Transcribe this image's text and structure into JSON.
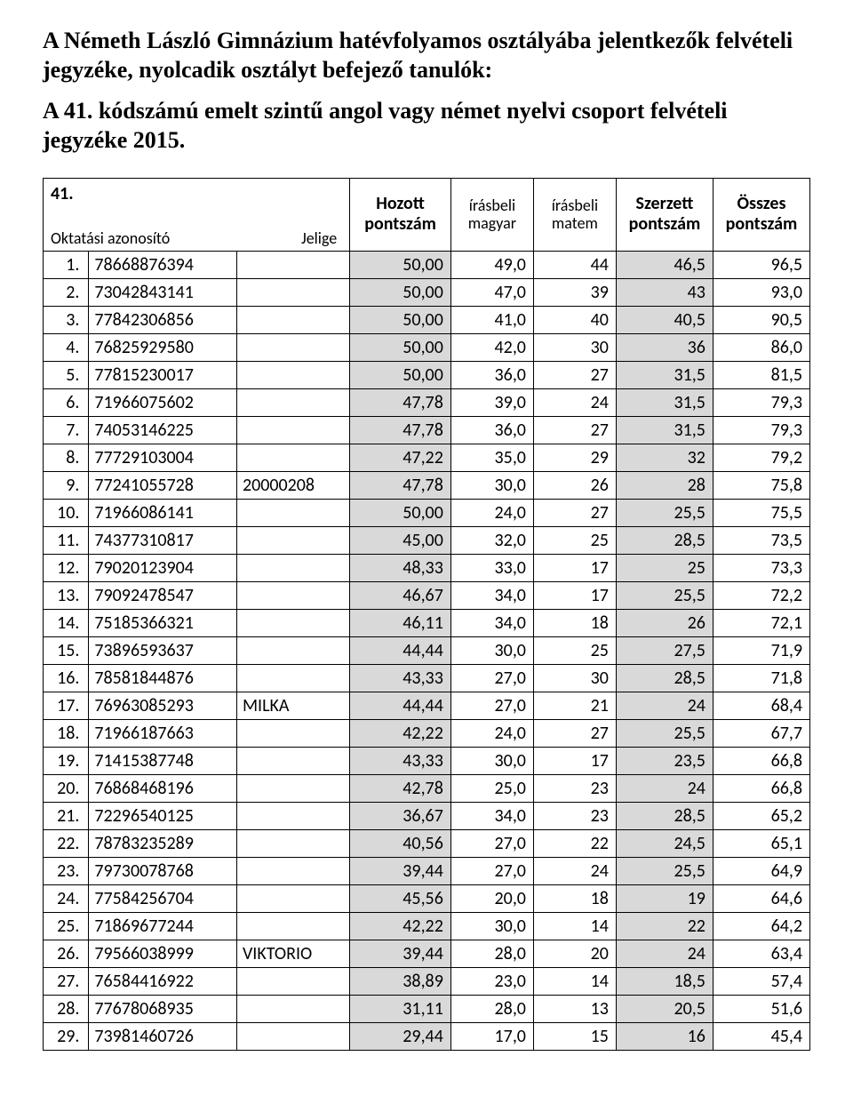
{
  "title_line1": "A Németh László Gimnázium hatévfolyamos osztályába jelentkezők felvételi jegyzéke, ",
  "title_line2": "nyolcadik osztályt befejező tanulók:",
  "subtitle": "A 41. kódszámú emelt szintű angol vagy német nyelvi csoport felvételi jegyzéke 2015.",
  "header": {
    "corner_number": "41.",
    "corner_azon": "Oktatási azonosító",
    "corner_jelige": "Jelige",
    "hozott": "Hozott pontszám",
    "magyar": "írásbeli magyar",
    "matem": "írásbeli matem",
    "szerzett": "Szerzett pontszám",
    "osszes": "Összes pontszám"
  },
  "colors": {
    "shade": "#d9d9d9",
    "border": "#000000",
    "background": "#ffffff",
    "text": "#000000"
  },
  "rows": [
    {
      "n": "1.",
      "id": "78668876394",
      "jel": "",
      "hoz": "50,00",
      "mag": "49,0",
      "mat": "44",
      "szer": "46,5",
      "ossz": "96,5"
    },
    {
      "n": "2.",
      "id": "73042843141",
      "jel": "",
      "hoz": "50,00",
      "mag": "47,0",
      "mat": "39",
      "szer": "43",
      "ossz": "93,0"
    },
    {
      "n": "3.",
      "id": "77842306856",
      "jel": "",
      "hoz": "50,00",
      "mag": "41,0",
      "mat": "40",
      "szer": "40,5",
      "ossz": "90,5"
    },
    {
      "n": "4.",
      "id": "76825929580",
      "jel": "",
      "hoz": "50,00",
      "mag": "42,0",
      "mat": "30",
      "szer": "36",
      "ossz": "86,0"
    },
    {
      "n": "5.",
      "id": "77815230017",
      "jel": "",
      "hoz": "50,00",
      "mag": "36,0",
      "mat": "27",
      "szer": "31,5",
      "ossz": "81,5"
    },
    {
      "n": "6.",
      "id": "71966075602",
      "jel": "",
      "hoz": "47,78",
      "mag": "39,0",
      "mat": "24",
      "szer": "31,5",
      "ossz": "79,3"
    },
    {
      "n": "7.",
      "id": "74053146225",
      "jel": "",
      "hoz": "47,78",
      "mag": "36,0",
      "mat": "27",
      "szer": "31,5",
      "ossz": "79,3"
    },
    {
      "n": "8.",
      "id": "77729103004",
      "jel": "",
      "hoz": "47,22",
      "mag": "35,0",
      "mat": "29",
      "szer": "32",
      "ossz": "79,2"
    },
    {
      "n": "9.",
      "id": "77241055728",
      "jel": "20000208",
      "hoz": "47,78",
      "mag": "30,0",
      "mat": "26",
      "szer": "28",
      "ossz": "75,8"
    },
    {
      "n": "10.",
      "id": "71966086141",
      "jel": "",
      "hoz": "50,00",
      "mag": "24,0",
      "mat": "27",
      "szer": "25,5",
      "ossz": "75,5"
    },
    {
      "n": "11.",
      "id": "74377310817",
      "jel": "",
      "hoz": "45,00",
      "mag": "32,0",
      "mat": "25",
      "szer": "28,5",
      "ossz": "73,5"
    },
    {
      "n": "12.",
      "id": "79020123904",
      "jel": "",
      "hoz": "48,33",
      "mag": "33,0",
      "mat": "17",
      "szer": "25",
      "ossz": "73,3"
    },
    {
      "n": "13.",
      "id": "79092478547",
      "jel": "",
      "hoz": "46,67",
      "mag": "34,0",
      "mat": "17",
      "szer": "25,5",
      "ossz": "72,2"
    },
    {
      "n": "14.",
      "id": "75185366321",
      "jel": "",
      "hoz": "46,11",
      "mag": "34,0",
      "mat": "18",
      "szer": "26",
      "ossz": "72,1"
    },
    {
      "n": "15.",
      "id": "73896593637",
      "jel": "",
      "hoz": "44,44",
      "mag": "30,0",
      "mat": "25",
      "szer": "27,5",
      "ossz": "71,9"
    },
    {
      "n": "16.",
      "id": "78581844876",
      "jel": "",
      "hoz": "43,33",
      "mag": "27,0",
      "mat": "30",
      "szer": "28,5",
      "ossz": "71,8"
    },
    {
      "n": "17.",
      "id": "76963085293",
      "jel": "MILKA",
      "hoz": "44,44",
      "mag": "27,0",
      "mat": "21",
      "szer": "24",
      "ossz": "68,4"
    },
    {
      "n": "18.",
      "id": "71966187663",
      "jel": "",
      "hoz": "42,22",
      "mag": "24,0",
      "mat": "27",
      "szer": "25,5",
      "ossz": "67,7"
    },
    {
      "n": "19.",
      "id": "71415387748",
      "jel": "",
      "hoz": "43,33",
      "mag": "30,0",
      "mat": "17",
      "szer": "23,5",
      "ossz": "66,8"
    },
    {
      "n": "20.",
      "id": "76868468196",
      "jel": "",
      "hoz": "42,78",
      "mag": "25,0",
      "mat": "23",
      "szer": "24",
      "ossz": "66,8"
    },
    {
      "n": "21.",
      "id": "72296540125",
      "jel": "",
      "hoz": "36,67",
      "mag": "34,0",
      "mat": "23",
      "szer": "28,5",
      "ossz": "65,2"
    },
    {
      "n": "22.",
      "id": "78783235289",
      "jel": "",
      "hoz": "40,56",
      "mag": "27,0",
      "mat": "22",
      "szer": "24,5",
      "ossz": "65,1"
    },
    {
      "n": "23.",
      "id": "79730078768",
      "jel": "",
      "hoz": "39,44",
      "mag": "27,0",
      "mat": "24",
      "szer": "25,5",
      "ossz": "64,9"
    },
    {
      "n": "24.",
      "id": "77584256704",
      "jel": "",
      "hoz": "45,56",
      "mag": "20,0",
      "mat": "18",
      "szer": "19",
      "ossz": "64,6"
    },
    {
      "n": "25.",
      "id": "71869677244",
      "jel": "",
      "hoz": "42,22",
      "mag": "30,0",
      "mat": "14",
      "szer": "22",
      "ossz": "64,2"
    },
    {
      "n": "26.",
      "id": "79566038999",
      "jel": "VIKTORIO",
      "hoz": "39,44",
      "mag": "28,0",
      "mat": "20",
      "szer": "24",
      "ossz": "63,4"
    },
    {
      "n": "27.",
      "id": "76584416922",
      "jel": "",
      "hoz": "38,89",
      "mag": "23,0",
      "mat": "14",
      "szer": "18,5",
      "ossz": "57,4"
    },
    {
      "n": "28.",
      "id": "77678068935",
      "jel": "",
      "hoz": "31,11",
      "mag": "28,0",
      "mat": "13",
      "szer": "20,5",
      "ossz": "51,6"
    },
    {
      "n": "29.",
      "id": "73981460726",
      "jel": "",
      "hoz": "29,44",
      "mag": "17,0",
      "mat": "15",
      "szer": "16",
      "ossz": "45,4"
    }
  ]
}
